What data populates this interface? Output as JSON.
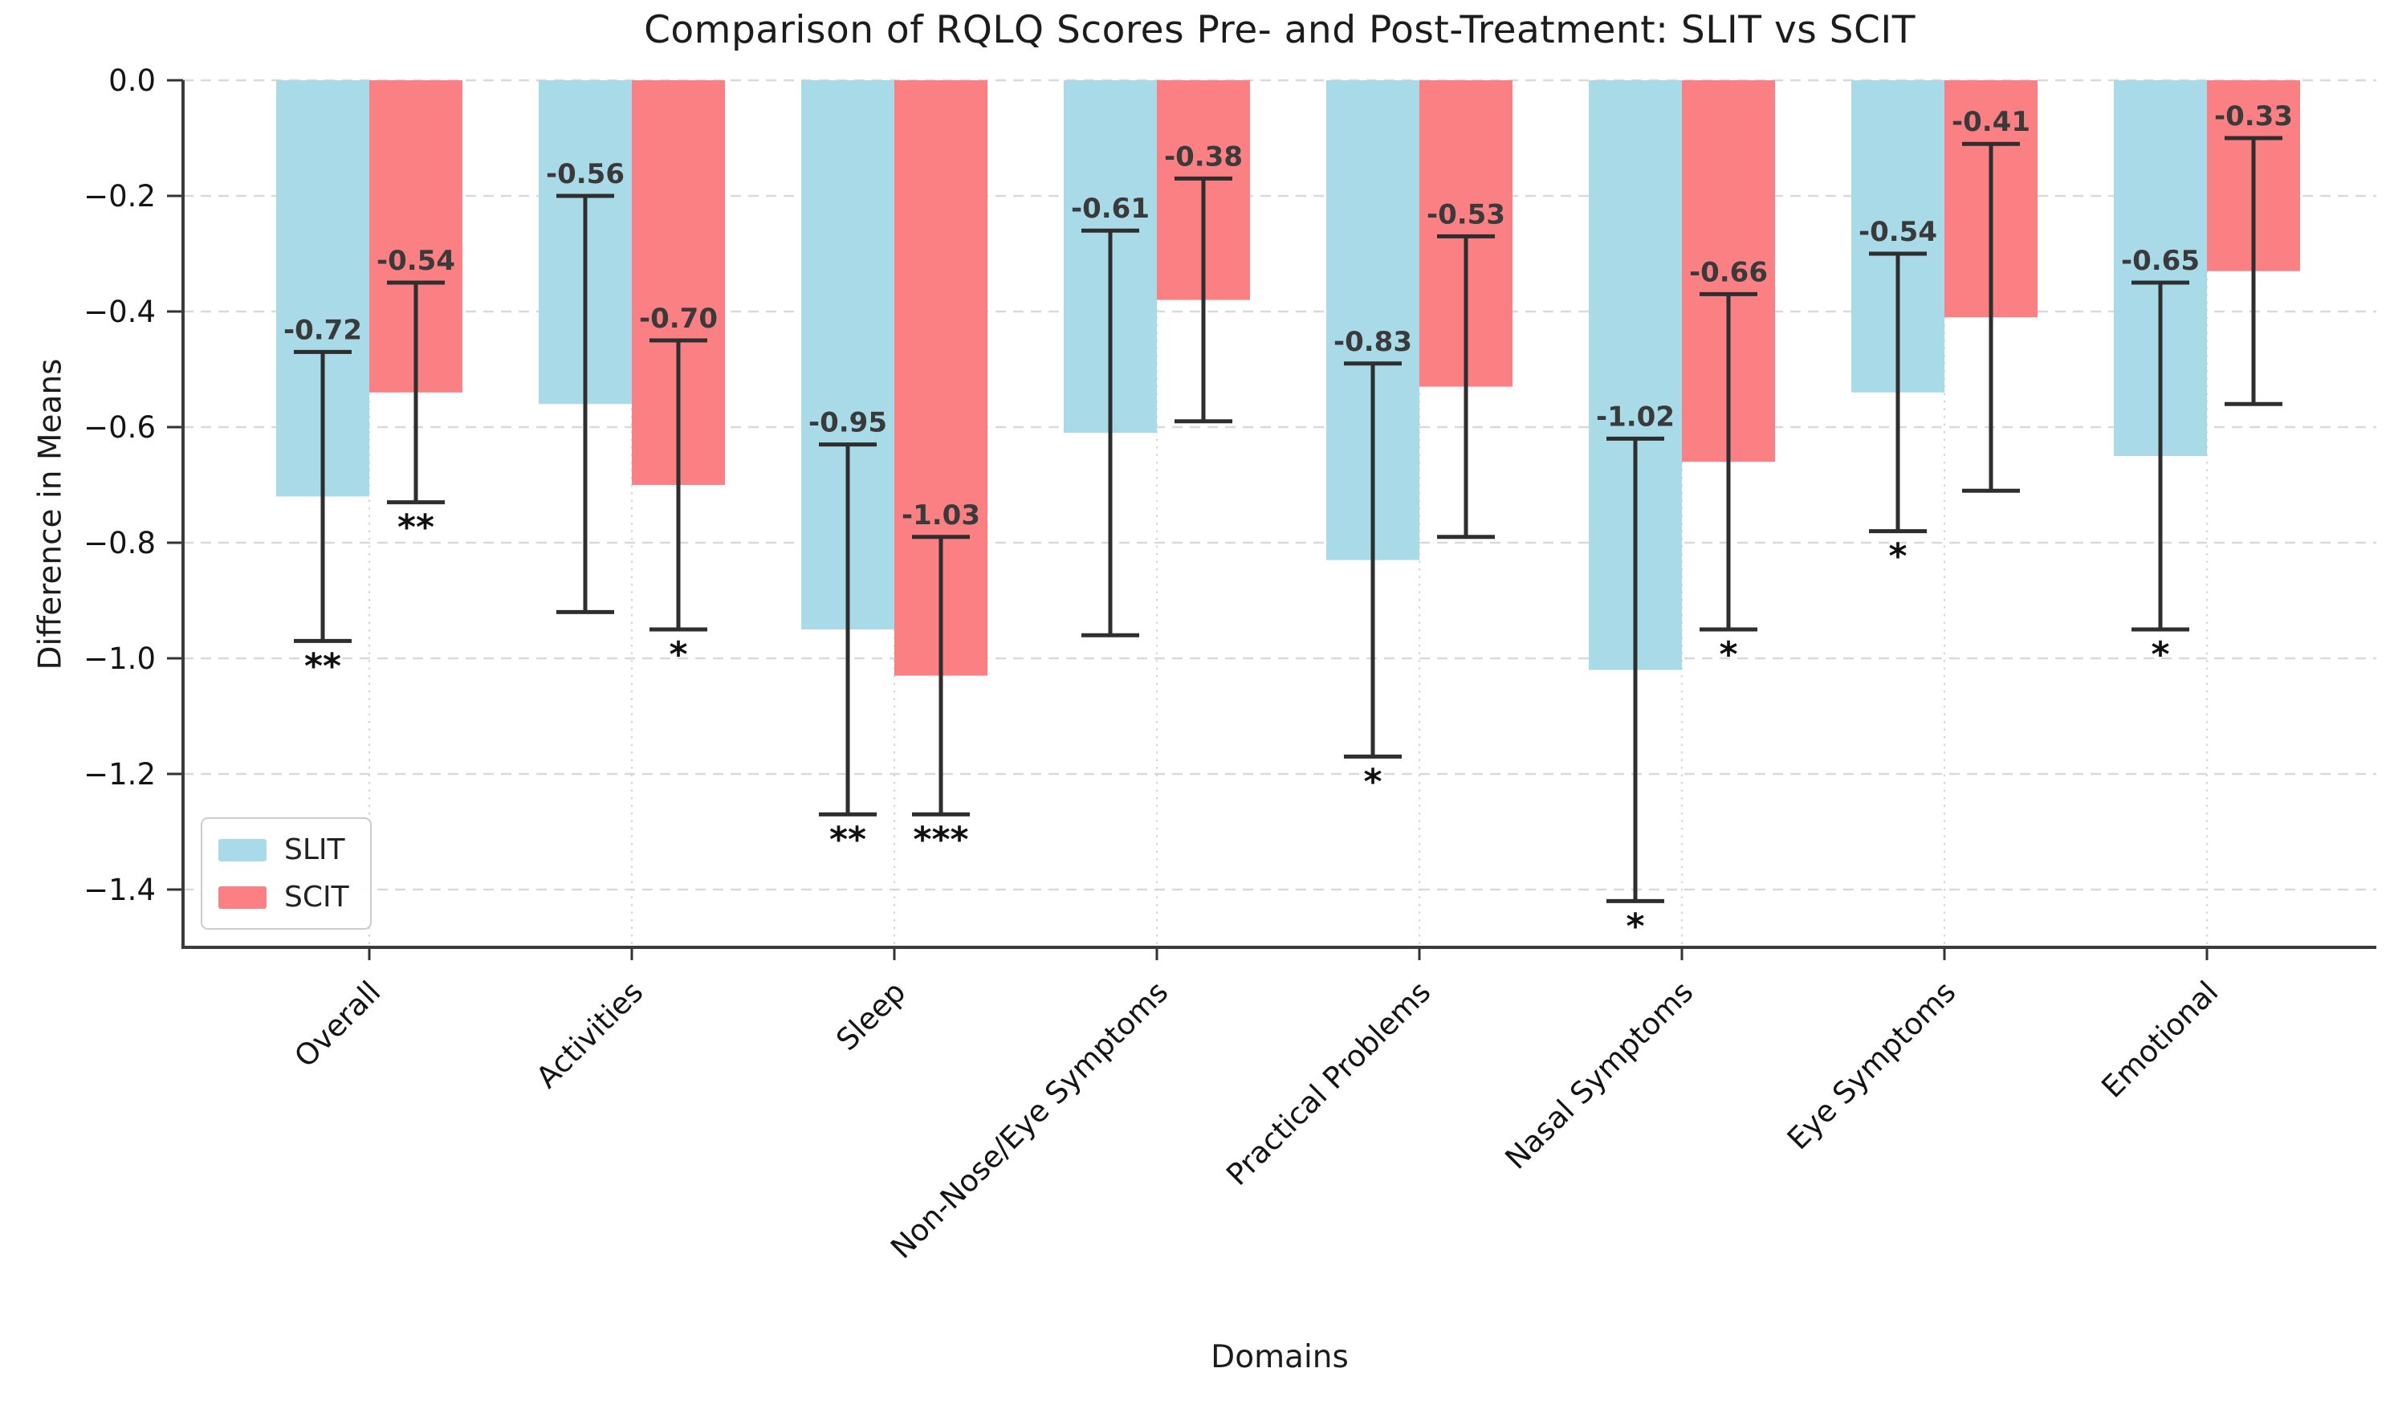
{
  "chart_data": {
    "type": "bar",
    "title": "Comparison of RQLQ Scores Pre- and Post-Treatment: SLIT vs SCIT",
    "xlabel": "Domains",
    "ylabel": "Difference in Means",
    "categories": [
      "Overall",
      "Activities",
      "Sleep",
      "Non-Nose/Eye Symptoms",
      "Practical Problems",
      "Nasal Symptoms",
      "Eye Symptoms",
      "Emotional"
    ],
    "series": [
      {
        "name": "SLIT",
        "color": "#A9DAE8",
        "values": [
          -0.72,
          -0.56,
          -0.95,
          -0.61,
          -0.83,
          -1.02,
          -0.54,
          -0.65
        ],
        "errors": [
          0.25,
          0.36,
          0.32,
          0.35,
          0.34,
          0.4,
          0.24,
          0.3
        ],
        "significance": [
          "**",
          "",
          "**",
          "",
          "*",
          "*",
          "*",
          "*"
        ]
      },
      {
        "name": "SCIT",
        "color": "#FA8084",
        "values": [
          -0.54,
          -0.7,
          -1.03,
          -0.38,
          -0.53,
          -0.66,
          -0.41,
          -0.33
        ],
        "errors": [
          0.19,
          0.25,
          0.24,
          0.21,
          0.26,
          0.29,
          0.3,
          0.23
        ],
        "significance": [
          "**",
          "*",
          "***",
          "",
          "",
          "*",
          "",
          ""
        ]
      }
    ],
    "ylim": [
      -1.5,
      0
    ],
    "yticks": [
      {
        "label": "0.0",
        "value": 0
      },
      {
        "label": "−0.2",
        "value": -0.2
      },
      {
        "label": "−0.4",
        "value": -0.4
      },
      {
        "label": "−0.6",
        "value": -0.6
      },
      {
        "label": "−0.8",
        "value": -0.8
      },
      {
        "label": "−1.0",
        "value": -1.0
      },
      {
        "label": "−1.2",
        "value": -1.2
      },
      {
        "label": "−1.4",
        "value": -1.4
      }
    ],
    "grid": {
      "h_style": "dashed",
      "v_style": "dotted",
      "color": "#d9d9d9"
    },
    "legend": {
      "position": "lower-left"
    },
    "error_bar_color": "#2e2e2e",
    "accent_text_color": "#3a3a3a"
  }
}
